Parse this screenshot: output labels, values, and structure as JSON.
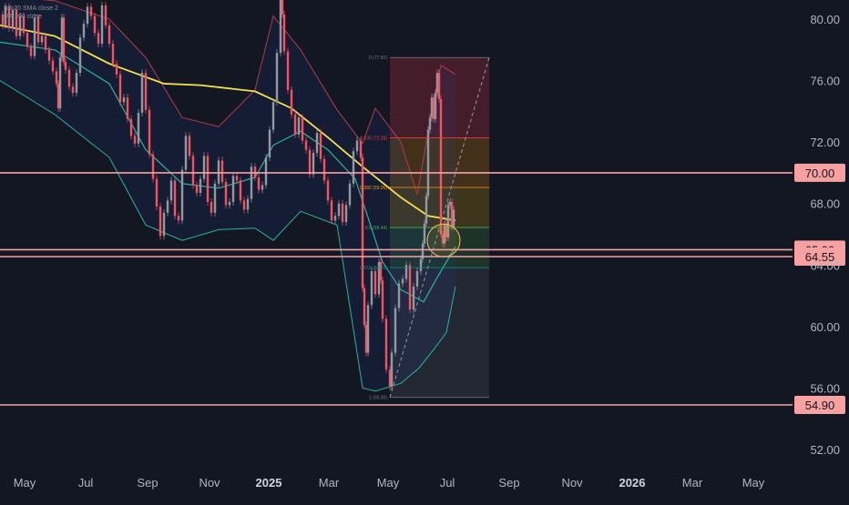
{
  "legend": {
    "bb": "BB 20 SMA close 2",
    "ma": "MA 200 close"
  },
  "chart_data": {
    "type": "line",
    "title": "",
    "xlabel": "",
    "ylabel": "",
    "x_ticks": [
      "May",
      "Jul",
      "Sep",
      "Nov",
      "2025",
      "Mar",
      "May",
      "Jul",
      "Sep",
      "Nov",
      "2026",
      "Mar",
      "May"
    ],
    "y_ticks": [
      "80.00",
      "76.00",
      "72.00",
      "68.00",
      "64.00",
      "60.00",
      "56.00",
      "52.00"
    ],
    "ylim": [
      50.5,
      81.2
    ],
    "price": [
      [
        0,
        80.3
      ],
      [
        3,
        79.6
      ],
      [
        6,
        80.8
      ],
      [
        10,
        79.4
      ],
      [
        14,
        80.6
      ],
      [
        18,
        78.9
      ],
      [
        22,
        80.2
      ],
      [
        26,
        79.1
      ],
      [
        30,
        78.2
      ],
      [
        34,
        77.6
      ],
      [
        38,
        80.1
      ],
      [
        42,
        78.5
      ],
      [
        46,
        78.9
      ],
      [
        50,
        78.0
      ],
      [
        54,
        77.3
      ],
      [
        58,
        76.6
      ],
      [
        62,
        75.8
      ],
      [
        64,
        74.2
      ],
      [
        66,
        77.5
      ],
      [
        68,
        80.1
      ],
      [
        70,
        77.2
      ],
      [
        72,
        76.7
      ],
      [
        76,
        75.6
      ],
      [
        80,
        75.2
      ],
      [
        84,
        76.5
      ],
      [
        88,
        78.8
      ],
      [
        92,
        79.7
      ],
      [
        96,
        80.8
      ],
      [
        100,
        80.2
      ],
      [
        104,
        79.1
      ],
      [
        108,
        78.4
      ],
      [
        112,
        80.9
      ],
      [
        116,
        79.6
      ],
      [
        120,
        78.4
      ],
      [
        124,
        77.1
      ],
      [
        128,
        76.4
      ],
      [
        132,
        74.6
      ],
      [
        136,
        74.9
      ],
      [
        140,
        73.5
      ],
      [
        144,
        72.4
      ],
      [
        148,
        71.9
      ],
      [
        152,
        73.9
      ],
      [
        156,
        76.5
      ],
      [
        160,
        74.1
      ],
      [
        164,
        71.2
      ],
      [
        168,
        69.6
      ],
      [
        172,
        67.8
      ],
      [
        176,
        65.9
      ],
      [
        180,
        67.4
      ],
      [
        184,
        68.2
      ],
      [
        188,
        69.5
      ],
      [
        192,
        67.2
      ],
      [
        196,
        66.9
      ],
      [
        200,
        70.2
      ],
      [
        204,
        72.4
      ],
      [
        208,
        71.1
      ],
      [
        212,
        69.2
      ],
      [
        216,
        68.7
      ],
      [
        220,
        69.6
      ],
      [
        224,
        71.1
      ],
      [
        228,
        68.1
      ],
      [
        232,
        67.4
      ],
      [
        236,
        69.3
      ],
      [
        240,
        70.8
      ],
      [
        244,
        69.4
      ],
      [
        248,
        67.9
      ],
      [
        252,
        68.1
      ],
      [
        256,
        69.8
      ],
      [
        260,
        69.5
      ],
      [
        264,
        68.2
      ],
      [
        268,
        67.6
      ],
      [
        272,
        68.3
      ],
      [
        276,
        70.4
      ],
      [
        280,
        69.7
      ],
      [
        284,
        68.9
      ],
      [
        288,
        69.2
      ],
      [
        292,
        71.0
      ],
      [
        296,
        72.8
      ],
      [
        300,
        74.6
      ],
      [
        304,
        77.8
      ],
      [
        308,
        81.5
      ],
      [
        310,
        80.3
      ],
      [
        312,
        77.9
      ],
      [
        316,
        75.4
      ],
      [
        320,
        73.8
      ],
      [
        324,
        72.5
      ],
      [
        328,
        73.6
      ],
      [
        332,
        72.1
      ],
      [
        336,
        71.5
      ],
      [
        340,
        69.9
      ],
      [
        344,
        71.3
      ],
      [
        348,
        72.6
      ],
      [
        352,
        70.9
      ],
      [
        356,
        69.5
      ],
      [
        360,
        68.2
      ],
      [
        364,
        66.9
      ],
      [
        368,
        67.2
      ],
      [
        372,
        68.0
      ],
      [
        376,
        66.8
      ],
      [
        380,
        67.9
      ],
      [
        384,
        69.3
      ],
      [
        388,
        71.4
      ],
      [
        392,
        72.1
      ],
      [
        396,
        71.0
      ],
      [
        398,
        62.5
      ],
      [
        400,
        60.1
      ],
      [
        402,
        58.3
      ],
      [
        404,
        61.4
      ],
      [
        408,
        63.6
      ],
      [
        412,
        62.1
      ],
      [
        416,
        64.2
      ],
      [
        418,
        63.0
      ],
      [
        420,
        60.5
      ],
      [
        424,
        57.2
      ],
      [
        428,
        56.1
      ],
      [
        430,
        58.3
      ],
      [
        434,
        61.2
      ],
      [
        438,
        62.8
      ],
      [
        442,
        63.1
      ],
      [
        446,
        64.0
      ],
      [
        450,
        61.1
      ],
      [
        454,
        62.6
      ],
      [
        458,
        63.6
      ],
      [
        462,
        64.4
      ],
      [
        464,
        65.4
      ],
      [
        466,
        66.7
      ],
      [
        468,
        68.5
      ],
      [
        470,
        72.8
      ],
      [
        472,
        73.6
      ],
      [
        474,
        74.9
      ],
      [
        476,
        73.5
      ],
      [
        478,
        75.2
      ],
      [
        480,
        76.5
      ],
      [
        482,
        74.8
      ],
      [
        484,
        66.0
      ],
      [
        486,
        65.4
      ],
      [
        488,
        66.7
      ],
      [
        490,
        65.8
      ],
      [
        492,
        67.9
      ],
      [
        494,
        68.1
      ],
      [
        496,
        66.5
      ],
      [
        498,
        67.6
      ]
    ],
    "ma200": [
      [
        0,
        79.6
      ],
      [
        60,
        78.9
      ],
      [
        120,
        77.1
      ],
      [
        180,
        75.8
      ],
      [
        220,
        75.7
      ],
      [
        280,
        75.3
      ],
      [
        320,
        74.2
      ],
      [
        360,
        72.3
      ],
      [
        400,
        70.3
      ],
      [
        440,
        68.4
      ],
      [
        470,
        67.2
      ],
      [
        500,
        66.9
      ]
    ],
    "bb_mid": [
      [
        0,
        78.5
      ],
      [
        60,
        78.0
      ],
      [
        120,
        75.8
      ],
      [
        160,
        71.5
      ],
      [
        200,
        69.3
      ],
      [
        240,
        69.0
      ],
      [
        280,
        69.7
      ],
      [
        300,
        71.8
      ],
      [
        330,
        72.7
      ],
      [
        360,
        71.5
      ],
      [
        390,
        69.6
      ],
      [
        420,
        64.2
      ],
      [
        440,
        62.4
      ],
      [
        465,
        61.6
      ],
      [
        480,
        63.2
      ],
      [
        500,
        65.2
      ]
    ],
    "bb_upper": [
      [
        0,
        81.5
      ],
      [
        60,
        81.2
      ],
      [
        120,
        80.0
      ],
      [
        160,
        77.5
      ],
      [
        200,
        73.6
      ],
      [
        240,
        73.0
      ],
      [
        280,
        75.4
      ],
      [
        300,
        80.2
      ],
      [
        330,
        78.0
      ],
      [
        370,
        74.1
      ],
      [
        398,
        71.9
      ],
      [
        412,
        74.2
      ],
      [
        440,
        72.0
      ],
      [
        458,
        68.6
      ],
      [
        474,
        74.0
      ],
      [
        484,
        77.0
      ],
      [
        500,
        76.4
      ]
    ],
    "bb_lower": [
      [
        0,
        76.0
      ],
      [
        60,
        73.8
      ],
      [
        120,
        71.0
      ],
      [
        160,
        66.6
      ],
      [
        200,
        65.6
      ],
      [
        240,
        66.3
      ],
      [
        280,
        66.4
      ],
      [
        300,
        65.6
      ],
      [
        330,
        67.5
      ],
      [
        370,
        66.6
      ],
      [
        398,
        56.0
      ],
      [
        412,
        55.8
      ],
      [
        440,
        56.3
      ],
      [
        460,
        57.3
      ],
      [
        476,
        58.5
      ],
      [
        490,
        59.6
      ],
      [
        500,
        62.6
      ]
    ],
    "fib_levels": [
      {
        "label": "0 (77.50)",
        "value": 77.5,
        "color": "#787b86"
      },
      {
        "label": "0.236 (72.28)",
        "value": 72.28,
        "color": "#f23645"
      },
      {
        "label": "0.382 (69.05)",
        "value": 69.05,
        "color": "#ff9800"
      },
      {
        "label": "0.5 (66.44)",
        "value": 66.44,
        "color": "#4caf50"
      },
      {
        "label": "0.618 (63.83)",
        "value": 63.83,
        "color": "#089981"
      },
      {
        "label": "1 (55.39)",
        "value": 55.39,
        "color": "#787b86"
      }
    ],
    "horizontal_levels": [
      {
        "label": "70.00",
        "value": 70.0
      },
      {
        "label": "65.00",
        "value": 65.0
      },
      {
        "label": "64.55",
        "value": 64.55
      },
      {
        "label": "54.90",
        "value": 54.9
      }
    ],
    "level_color": "#f7a1a1",
    "colors": {
      "up": "#9598a1",
      "down": "#f7525f",
      "ma200": "#f4e04d",
      "bb_mid": "#2bb39b",
      "bb_band": "#2962ff",
      "bb_upper": "#b23b4a",
      "bb_lower": "#2bb39b"
    }
  }
}
